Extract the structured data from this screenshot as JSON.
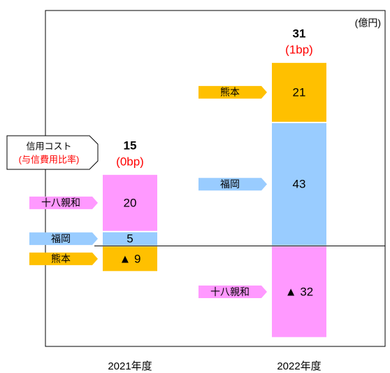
{
  "chart_data": {
    "type": "bar",
    "stacked": true,
    "unit": "(億円)",
    "callout": {
      "title": "信用コスト",
      "subtitle": "(与信費用比率)"
    },
    "categories": [
      "2021年度",
      "2022年度"
    ],
    "series": [
      {
        "name": "福岡",
        "color": "#99CCFF",
        "values": [
          5,
          43
        ]
      },
      {
        "name": "熊本",
        "color": "#FFC000",
        "values": [
          -9,
          21
        ],
        "value_labels": [
          "▲ 9",
          "21"
        ]
      },
      {
        "name": "十八親和",
        "color": "#FF99FF",
        "values": [
          20,
          -32
        ],
        "value_labels": [
          "20",
          "▲ 32"
        ]
      }
    ],
    "totals": [
      15,
      31
    ],
    "total_notes": [
      "(0bp)",
      "(1bp)"
    ],
    "ylim": [
      -35,
      82
    ]
  }
}
